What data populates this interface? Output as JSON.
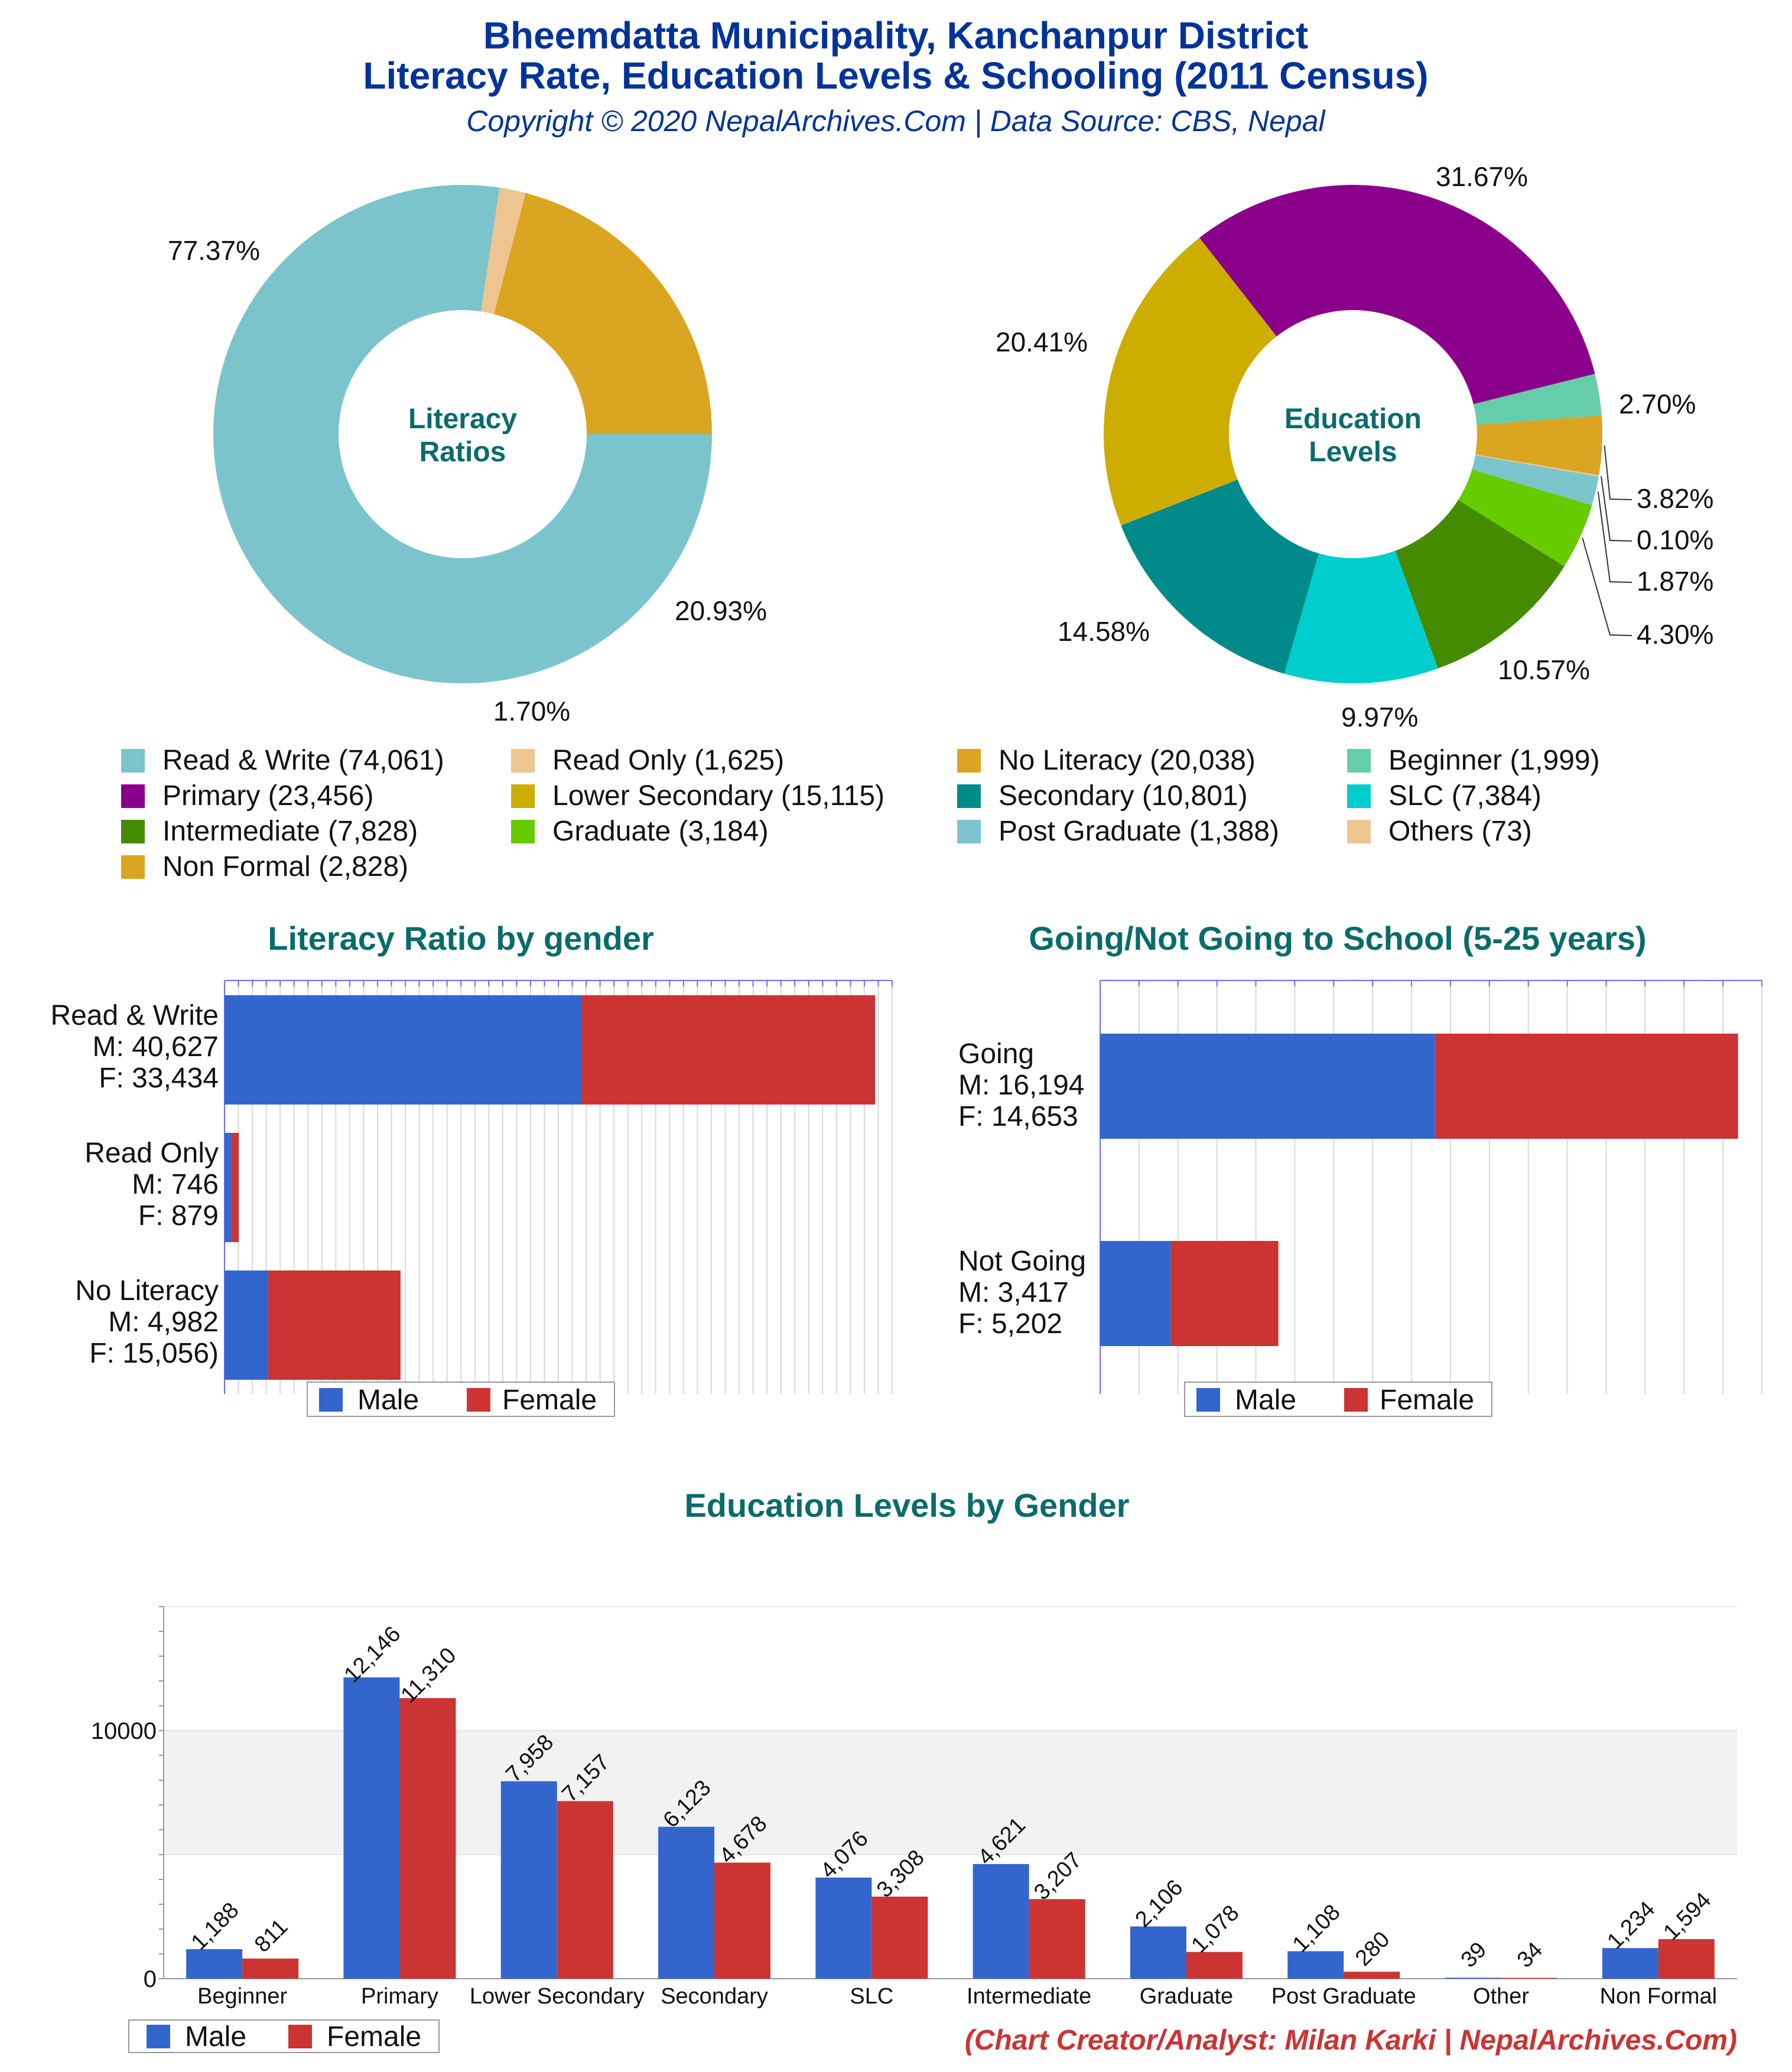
{
  "header": {
    "title_line1": "Bheemdatta Municipality, Kanchanpur District",
    "title_line2": "Literacy Rate, Education Levels & Schooling (2011 Census)",
    "subtitle": "Copyright © 2020 NepalArchives.Com | Data Source: CBS, Nepal"
  },
  "footer": {
    "credit": "(Chart Creator/Analyst: Milan Karki | NepalArchives.Com)"
  },
  "colors": {
    "title_blue": "#003399",
    "teal_heading": "#0a6b6b",
    "male": "#3366cc",
    "female": "#cc3333",
    "credit_red": "#cc3333"
  },
  "chart_data": [
    {
      "id": "literacy-ratios",
      "type": "pie",
      "center_label": [
        "Literacy",
        "Ratios"
      ],
      "slices": [
        {
          "label": "Read & Write",
          "value": 74061,
          "percent_label": "77.37%",
          "color": "#7cc4cc"
        },
        {
          "label": "Read Only",
          "value": 1625,
          "percent_label": "1.70%",
          "color": "#eec490"
        },
        {
          "label": "No Literacy",
          "value": 20038,
          "percent_label": "20.93%",
          "color": "#daa520"
        }
      ]
    },
    {
      "id": "education-levels",
      "type": "pie",
      "center_label": [
        "Education",
        "Levels"
      ],
      "slices": [
        {
          "label": "Beginner",
          "value": 1999,
          "percent_label": "2.70%",
          "color": "#66cdaa"
        },
        {
          "label": "Non Formal",
          "value": 2828,
          "percent_label": "3.82%",
          "color": "#daa520"
        },
        {
          "label": "Others",
          "value": 73,
          "percent_label": "0.10%",
          "color": "#eec490"
        },
        {
          "label": "Post Graduate",
          "value": 1388,
          "percent_label": "1.87%",
          "color": "#7cc4cc"
        },
        {
          "label": "Graduate",
          "value": 3184,
          "percent_label": "4.30%",
          "color": "#66cc00"
        },
        {
          "label": "Intermediate",
          "value": 7828,
          "percent_label": "10.57%",
          "color": "#458b00"
        },
        {
          "label": "SLC",
          "value": 7384,
          "percent_label": "9.97%",
          "color": "#00cdcd"
        },
        {
          "label": "Secondary",
          "value": 10801,
          "percent_label": "14.58%",
          "color": "#008b8b"
        },
        {
          "label": "Lower Secondary",
          "value": 15115,
          "percent_label": "20.41%",
          "color": "#cdad00"
        },
        {
          "label": "Primary",
          "value": 23456,
          "percent_label": "31.67%",
          "color": "#8b008b"
        }
      ]
    },
    {
      "id": "literacy-by-gender",
      "type": "bar",
      "orientation": "horizontal",
      "stacked": true,
      "title": "Literacy Ratio by gender",
      "categories": [
        {
          "name": "Read & Write",
          "male_label": "M: 40,627",
          "female_label": "F: 33,434"
        },
        {
          "name": "Read Only",
          "male_label": "M: 746",
          "female_label": "F: 879"
        },
        {
          "name": "No Literacy",
          "male_label": "M: 4,982",
          "female_label": "F: 15,056)"
        }
      ],
      "series": [
        {
          "name": "Male",
          "values": [
            40627,
            746,
            4982
          ]
        },
        {
          "name": "Female",
          "values": [
            33434,
            879,
            15056
          ]
        }
      ],
      "xlim": [
        0,
        76000
      ],
      "legend": [
        "Male",
        "Female"
      ]
    },
    {
      "id": "school-by-gender",
      "type": "bar",
      "orientation": "horizontal",
      "stacked": true,
      "title": "Going/Not Going to School (5-25 years)",
      "categories": [
        {
          "name": "Going",
          "male_label": "M: 16,194",
          "female_label": "F: 14,653"
        },
        {
          "name": "Not Going",
          "male_label": "M: 3,417",
          "female_label": "F: 5,202"
        }
      ],
      "series": [
        {
          "name": "Male",
          "values": [
            16194,
            3417
          ]
        },
        {
          "name": "Female",
          "values": [
            14653,
            5202
          ]
        }
      ],
      "xlim": [
        0,
        32000
      ],
      "legend": [
        "Male",
        "Female"
      ]
    },
    {
      "id": "education-by-gender",
      "type": "bar",
      "orientation": "vertical",
      "stacked": false,
      "title": "Education Levels by Gender",
      "categories": [
        "Beginner",
        "Primary",
        "Lower Secondary",
        "Secondary",
        "SLC",
        "Intermediate",
        "Graduate",
        "Post Graduate",
        "Other",
        "Non Formal"
      ],
      "series": [
        {
          "name": "Male",
          "values": [
            1188,
            12146,
            7958,
            6123,
            4076,
            4621,
            2106,
            1108,
            39,
            1234
          ],
          "labels": [
            "1,188",
            "12,146",
            "7,958",
            "6,123",
            "4,076",
            "4,621",
            "2,106",
            "1,108",
            "39",
            "1,234"
          ]
        },
        {
          "name": "Female",
          "values": [
            811,
            11310,
            7157,
            4678,
            3308,
            3207,
            1078,
            280,
            34,
            1594
          ],
          "labels": [
            "811",
            "11,310",
            "7,157",
            "4,678",
            "3,308",
            "3,207",
            "1,078",
            "280",
            "34",
            "1,594"
          ]
        }
      ],
      "yticks": [
        "0",
        "10000"
      ],
      "ylim": [
        0,
        15000
      ],
      "legend": [
        "Male",
        "Female"
      ]
    }
  ]
}
